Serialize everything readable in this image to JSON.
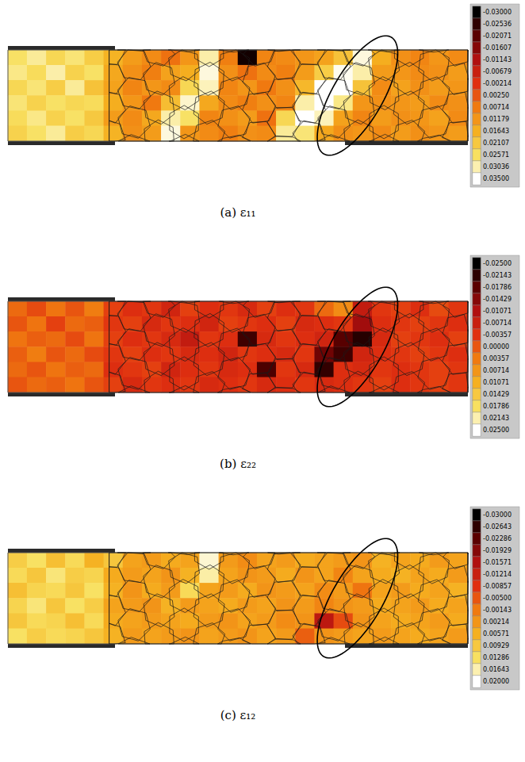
{
  "chart_data": [
    {
      "type": "heatmap",
      "caption": "(a) ε₁₁",
      "tick_labels": false,
      "cells": [
        [
          0.026,
          0.029,
          0.024,
          0.027,
          0.022,
          0.017,
          0.013,
          0.01,
          0.006,
          0.012,
          0.03,
          0.008,
          -0.028,
          0.009,
          0.01,
          0.012,
          0.014,
          0.02,
          0.033,
          0.016,
          0.011,
          0.009,
          0.012,
          0.01
        ],
        [
          0.028,
          0.025,
          0.03,
          0.023,
          0.026,
          0.015,
          0.011,
          0.008,
          0.014,
          0.016,
          0.033,
          0.011,
          0.006,
          0.01,
          0.008,
          0.013,
          0.022,
          0.034,
          0.03,
          0.013,
          0.012,
          0.01,
          0.011,
          0.013
        ],
        [
          0.024,
          0.027,
          0.022,
          0.029,
          0.02,
          0.014,
          0.009,
          0.012,
          0.01,
          0.024,
          0.031,
          0.009,
          0.012,
          0.007,
          0.011,
          0.018,
          0.035,
          0.035,
          0.02,
          0.01,
          0.014,
          0.011,
          0.013,
          0.012
        ],
        [
          0.027,
          0.023,
          0.026,
          0.024,
          0.025,
          0.016,
          0.012,
          0.007,
          0.019,
          0.032,
          0.015,
          0.01,
          0.008,
          0.011,
          0.009,
          0.03,
          0.035,
          0.028,
          0.012,
          0.011,
          0.012,
          0.013,
          0.01,
          0.011
        ],
        [
          0.025,
          0.028,
          0.023,
          0.026,
          0.021,
          0.013,
          0.01,
          0.015,
          0.03,
          0.026,
          0.009,
          0.011,
          0.013,
          0.006,
          0.024,
          0.035,
          0.031,
          0.014,
          0.009,
          0.013,
          0.011,
          0.012,
          0.014,
          0.01
        ],
        [
          0.023,
          0.026,
          0.029,
          0.022,
          0.024,
          0.017,
          0.011,
          0.013,
          0.033,
          0.012,
          0.01,
          0.008,
          0.011,
          0.01,
          0.029,
          0.027,
          0.015,
          0.011,
          0.012,
          0.01,
          0.013,
          0.011,
          0.012,
          0.013
        ]
      ],
      "colorbar": {
        "range": [
          -0.03,
          0.035
        ],
        "ticks": [
          {
            "value": -0.03,
            "label": "-0.03000"
          },
          {
            "value": -0.02536,
            "label": "-0.02536"
          },
          {
            "value": -0.02071,
            "label": "-0.02071"
          },
          {
            "value": -0.01607,
            "label": "-0.01607"
          },
          {
            "value": -0.01143,
            "label": "-0.01143"
          },
          {
            "value": -0.00679,
            "label": "-0.00679"
          },
          {
            "value": -0.00214,
            "label": "-0.00214"
          },
          {
            "value": 0.0025,
            "label": "0.00250"
          },
          {
            "value": 0.00714,
            "label": "0.00714"
          },
          {
            "value": 0.01179,
            "label": "0.01179"
          },
          {
            "value": 0.01643,
            "label": "0.01643"
          },
          {
            "value": 0.02107,
            "label": "0.02107"
          },
          {
            "value": 0.02571,
            "label": "0.02571"
          },
          {
            "value": 0.03036,
            "label": "0.03036"
          },
          {
            "value": 0.035,
            "label": "0.03500"
          }
        ]
      }
    },
    {
      "type": "heatmap",
      "caption": "(b) ε₂₂",
      "tick_labels": false,
      "cells": [
        [
          0.002,
          -0.001,
          0.003,
          0.0,
          0.004,
          -0.002,
          -0.004,
          -0.003,
          -0.006,
          -0.002,
          -0.004,
          -0.003,
          -0.005,
          -0.002,
          -0.004,
          -0.003,
          0.002,
          0.006,
          -0.008,
          -0.003,
          -0.002,
          -0.004,
          -0.001,
          -0.003
        ],
        [
          0.0,
          0.003,
          -0.002,
          0.002,
          0.001,
          -0.003,
          -0.002,
          -0.005,
          -0.003,
          -0.004,
          -0.006,
          -0.002,
          -0.003,
          -0.004,
          -0.002,
          -0.005,
          -0.004,
          -0.003,
          -0.012,
          -0.004,
          -0.003,
          -0.002,
          -0.003,
          -0.004
        ],
        [
          0.003,
          0.001,
          0.002,
          -0.001,
          0.003,
          -0.002,
          -0.004,
          -0.003,
          -0.005,
          -0.008,
          -0.003,
          -0.004,
          -0.02,
          -0.005,
          -0.003,
          -0.004,
          -0.006,
          -0.018,
          -0.022,
          -0.005,
          -0.002,
          -0.003,
          -0.004,
          -0.002
        ],
        [
          0.001,
          0.004,
          0.0,
          0.002,
          -0.001,
          -0.003,
          -0.002,
          -0.004,
          -0.003,
          -0.005,
          -0.004,
          -0.006,
          -0.003,
          -0.004,
          -0.005,
          -0.003,
          -0.016,
          -0.02,
          -0.006,
          -0.004,
          -0.003,
          -0.002,
          -0.003,
          -0.004
        ],
        [
          0.002,
          0.0,
          0.003,
          0.001,
          0.002,
          -0.004,
          -0.003,
          -0.002,
          -0.006,
          -0.004,
          -0.003,
          -0.005,
          -0.004,
          -0.019,
          -0.003,
          -0.005,
          -0.021,
          -0.004,
          -0.005,
          -0.003,
          -0.004,
          -0.003,
          -0.002,
          -0.003
        ],
        [
          0.0,
          0.002,
          0.001,
          0.003,
          0.0,
          -0.002,
          -0.005,
          -0.003,
          -0.004,
          -0.003,
          -0.005,
          -0.004,
          -0.003,
          -0.005,
          -0.004,
          -0.003,
          -0.005,
          -0.004,
          -0.003,
          -0.002,
          -0.004,
          -0.003,
          -0.002,
          -0.003
        ]
      ],
      "colorbar": {
        "range": [
          -0.025,
          0.025
        ],
        "ticks": [
          {
            "value": -0.025,
            "label": "-0.02500"
          },
          {
            "value": -0.02143,
            "label": "-0.02143"
          },
          {
            "value": -0.01786,
            "label": "-0.01786"
          },
          {
            "value": -0.01429,
            "label": "-0.01429"
          },
          {
            "value": -0.01071,
            "label": "-0.01071"
          },
          {
            "value": -0.00714,
            "label": "-0.00714"
          },
          {
            "value": -0.00357,
            "label": "-0.00357"
          },
          {
            "value": 0,
            "label": "0.00000"
          },
          {
            "value": 0.00357,
            "label": "0.00357"
          },
          {
            "value": 0.00714,
            "label": "0.00714"
          },
          {
            "value": 0.01071,
            "label": "0.01071"
          },
          {
            "value": 0.01429,
            "label": "0.01429"
          },
          {
            "value": 0.01786,
            "label": "0.01786"
          },
          {
            "value": 0.02143,
            "label": "0.02143"
          },
          {
            "value": 0.025,
            "label": "0.02500"
          }
        ]
      }
    },
    {
      "type": "heatmap",
      "caption": "(c) ε₁₂",
      "tick_labels": false,
      "cells": [
        [
          0.01,
          0.013,
          0.008,
          0.012,
          0.006,
          0.009,
          0.004,
          0.003,
          0.005,
          0.004,
          0.018,
          0.003,
          0.001,
          0.004,
          0.003,
          0.005,
          0.004,
          0.003,
          0.002,
          0.006,
          0.004,
          0.005,
          0.003,
          0.004
        ],
        [
          0.012,
          0.009,
          0.014,
          0.01,
          0.011,
          0.005,
          0.003,
          0.004,
          0.002,
          0.006,
          0.016,
          0.004,
          0.002,
          0.003,
          0.005,
          0.002,
          0.004,
          0.0,
          0.004,
          0.005,
          0.006,
          0.004,
          0.005,
          0.003
        ],
        [
          0.008,
          0.011,
          0.012,
          0.009,
          0.013,
          0.006,
          0.002,
          0.005,
          0.003,
          0.012,
          0.004,
          0.003,
          0.005,
          0.002,
          0.003,
          0.004,
          0.001,
          0.003,
          -0.002,
          0.004,
          0.003,
          0.005,
          0.004,
          0.006
        ],
        [
          0.011,
          0.014,
          0.009,
          0.013,
          0.01,
          0.004,
          0.003,
          0.002,
          0.006,
          0.003,
          0.004,
          0.005,
          0.003,
          0.004,
          0.002,
          0.003,
          0.0,
          0.002,
          0.003,
          0.005,
          0.004,
          0.003,
          0.005,
          0.004
        ],
        [
          0.009,
          0.012,
          0.011,
          0.008,
          0.012,
          0.005,
          0.004,
          0.003,
          0.004,
          0.005,
          0.003,
          0.002,
          0.004,
          0.003,
          0.001,
          0.002,
          -0.014,
          -0.006,
          0.002,
          0.004,
          0.005,
          0.004,
          0.003,
          0.005
        ],
        [
          0.013,
          0.01,
          0.012,
          0.011,
          0.009,
          0.006,
          0.003,
          0.004,
          0.003,
          0.002,
          0.004,
          0.003,
          0.002,
          0.004,
          0.003,
          -0.004,
          0.002,
          0.003,
          0.004,
          0.003,
          0.004,
          0.005,
          0.004,
          0.003
        ]
      ],
      "colorbar": {
        "range": [
          -0.03,
          0.02
        ],
        "ticks": [
          {
            "value": -0.03,
            "label": "-0.03000"
          },
          {
            "value": -0.02643,
            "label": "-0.02643"
          },
          {
            "value": -0.02286,
            "label": "-0.02286"
          },
          {
            "value": -0.01929,
            "label": "-0.01929"
          },
          {
            "value": -0.01571,
            "label": "-0.01571"
          },
          {
            "value": -0.01214,
            "label": "-0.01214"
          },
          {
            "value": -0.00857,
            "label": "-0.00857"
          },
          {
            "value": -0.005,
            "label": "-0.00500"
          },
          {
            "value": -0.00143,
            "label": "-0.00143"
          },
          {
            "value": 0.00214,
            "label": "0.00214"
          },
          {
            "value": 0.00571,
            "label": "0.00571"
          },
          {
            "value": 0.00929,
            "label": "0.00929"
          },
          {
            "value": 0.01286,
            "label": "0.01286"
          },
          {
            "value": 0.01643,
            "label": "0.01643"
          },
          {
            "value": 0.02,
            "label": "0.02000"
          }
        ]
      }
    }
  ]
}
